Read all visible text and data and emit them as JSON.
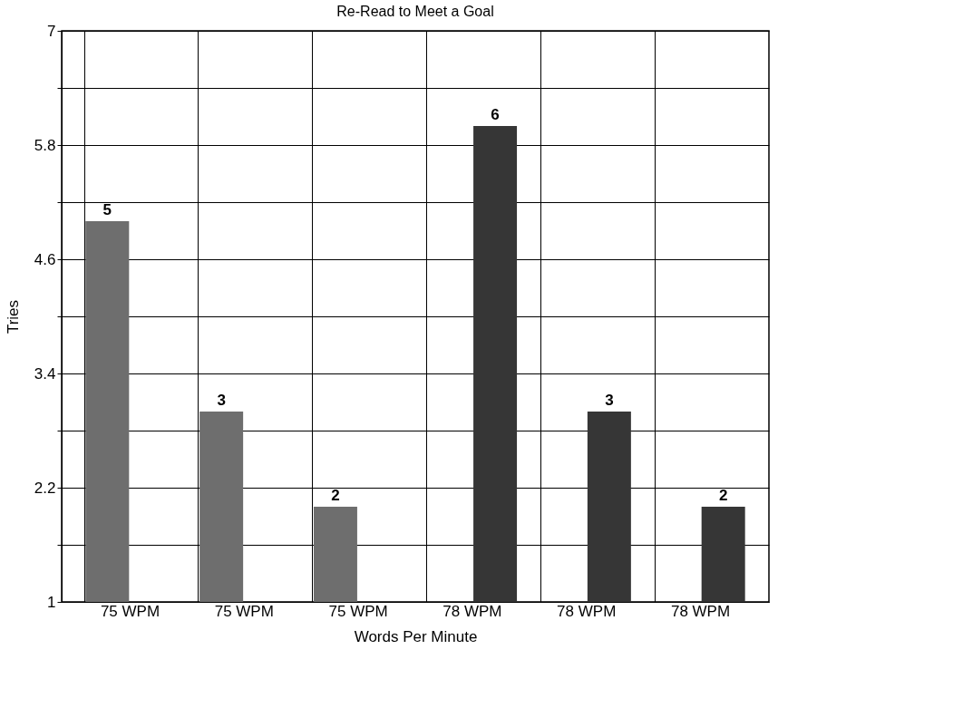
{
  "chart_data": {
    "type": "bar",
    "title": "Re-Read to Meet a Goal",
    "xlabel": "Words Per Minute",
    "ylabel": "Tries",
    "categories": [
      "75 WPM",
      "75 WPM",
      "75 WPM",
      "78 WPM",
      "78 WPM",
      "78 WPM"
    ],
    "series": [
      {
        "color": "#6e6e6e",
        "values": [
          5,
          3,
          2,
          null,
          null,
          null
        ]
      },
      {
        "color": "#363636",
        "values": [
          null,
          null,
          null,
          6,
          3,
          2
        ]
      }
    ],
    "ylim": [
      1,
      7
    ],
    "yticks": [
      1,
      {
        "value": 1.6,
        "label": null
      },
      2.2,
      {
        "value": 2.8,
        "label": null
      },
      3.4,
      {
        "value": 4.0,
        "label": null
      },
      4.6,
      {
        "value": 5.2,
        "label": null
      },
      5.8,
      {
        "value": 6.4,
        "label": null
      },
      7
    ],
    "grid": true,
    "data_labels": true
  }
}
